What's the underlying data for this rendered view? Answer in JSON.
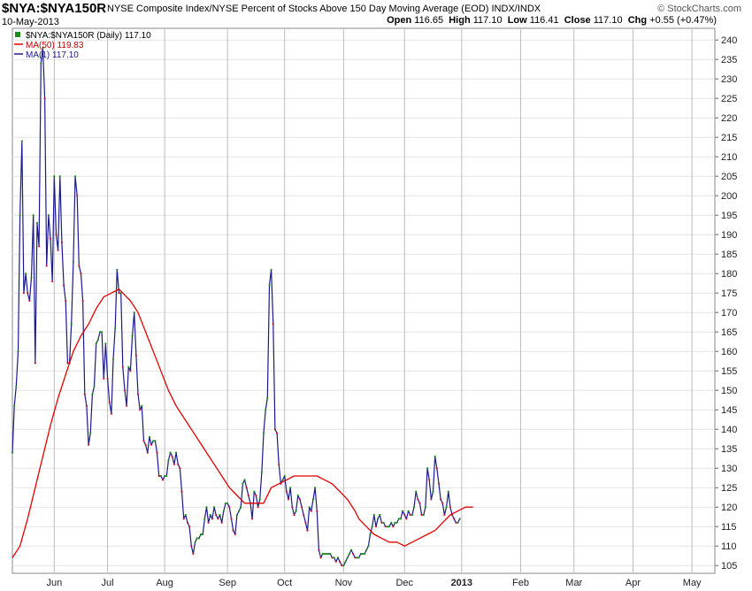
{
  "header": {
    "symbol": "$NYA:$NYA150R",
    "name": "NYSE Composite Index/NYSE Percent of Stocks Above 150 Day Moving Average (EOD)  INDX/INDX",
    "brand": "© StockCharts.com",
    "date": "10-May-2013",
    "open_label": "Open",
    "open": "116.65",
    "high_label": "High",
    "high": "117.10",
    "low_label": "Low",
    "low": "116.41",
    "close_label": "Close",
    "close": "117.10",
    "chg_label": "Chg",
    "chg": "+0.55 (+0.47%)"
  },
  "chart_data": {
    "type": "line",
    "legend": [
      {
        "label": "$NYA:$NYA150R (Daily) 117.10",
        "color": "#1a1a8c"
      },
      {
        "label": "MA(50) 119.83",
        "color": "#e00000"
      },
      {
        "label": "MA(1) 117.10",
        "color": "#1a1a8c"
      }
    ],
    "legend_position": "top-left",
    "ylim": [
      103,
      243
    ],
    "y_ticks": [
      105,
      110,
      115,
      120,
      125,
      130,
      135,
      140,
      145,
      150,
      155,
      160,
      165,
      170,
      175,
      180,
      185,
      190,
      195,
      200,
      205,
      210,
      215,
      220,
      225,
      230,
      235,
      240
    ],
    "x_ticks": [
      {
        "label": "Jun",
        "x": 10
      },
      {
        "label": "Jul",
        "x": 38
      },
      {
        "label": "Aug",
        "x": 68
      },
      {
        "label": "Sep",
        "x": 101
      },
      {
        "label": "Oct",
        "x": 131
      },
      {
        "label": "Nov",
        "x": 162
      },
      {
        "label": "Dec",
        "x": 194
      },
      {
        "label": "2013",
        "x": 224
      },
      {
        "label": "Feb",
        "x": 255
      },
      {
        "label": "Mar",
        "x": 283
      },
      {
        "label": "Apr",
        "x": 314
      },
      {
        "label": "May",
        "x": 345
      }
    ],
    "x_range": [
      -12,
      357
    ],
    "grid": true,
    "series": [
      {
        "name": "$NYA:$NYA150R",
        "color": "#1a1a8c",
        "points": [
          [
            -12,
            134
          ],
          [
            -11,
            146
          ],
          [
            -10,
            151
          ],
          [
            -9,
            160
          ],
          [
            -8,
            195
          ],
          [
            -7,
            214
          ],
          [
            -6,
            175
          ],
          [
            -5,
            180
          ],
          [
            -4,
            175
          ],
          [
            -3,
            173
          ],
          [
            -2,
            179
          ],
          [
            -1,
            195
          ],
          [
            0,
            157
          ],
          [
            1,
            193
          ],
          [
            2,
            187
          ],
          [
            3,
            234
          ],
          [
            4,
            238
          ],
          [
            5,
            225
          ],
          [
            6,
            182
          ],
          [
            7,
            195
          ],
          [
            8,
            189
          ],
          [
            9,
            178
          ],
          [
            10,
            205
          ],
          [
            11,
            190
          ],
          [
            12,
            186
          ],
          [
            13,
            205
          ],
          [
            14,
            188
          ],
          [
            15,
            177
          ],
          [
            16,
            173
          ],
          [
            17,
            157
          ],
          [
            18,
            157
          ],
          [
            19,
            167
          ],
          [
            20,
            183
          ],
          [
            21,
            205
          ],
          [
            22,
            200
          ],
          [
            23,
            182
          ],
          [
            24,
            180
          ],
          [
            25,
            173
          ],
          [
            26,
            149
          ],
          [
            27,
            146
          ],
          [
            28,
            136
          ],
          [
            29,
            139
          ],
          [
            30,
            149
          ],
          [
            31,
            151
          ],
          [
            32,
            162
          ],
          [
            33,
            163
          ],
          [
            34,
            165
          ],
          [
            35,
            165
          ],
          [
            36,
            153
          ],
          [
            37,
            162
          ],
          [
            38,
            153
          ],
          [
            39,
            147
          ],
          [
            40,
            144
          ],
          [
            41,
            158
          ],
          [
            42,
            166
          ],
          [
            43,
            181
          ],
          [
            44,
            175
          ],
          [
            45,
            175
          ],
          [
            46,
            156
          ],
          [
            47,
            150
          ],
          [
            48,
            146
          ],
          [
            49,
            156
          ],
          [
            50,
            155
          ],
          [
            51,
            164
          ],
          [
            52,
            170
          ],
          [
            53,
            159
          ],
          [
            54,
            149
          ],
          [
            55,
            145
          ],
          [
            56,
            146
          ],
          [
            57,
            137
          ],
          [
            58,
            136
          ],
          [
            59,
            134
          ],
          [
            60,
            138
          ],
          [
            61,
            136
          ],
          [
            62,
            137
          ],
          [
            63,
            137
          ],
          [
            64,
            134
          ],
          [
            65,
            128
          ],
          [
            66,
            128
          ],
          [
            67,
            127
          ],
          [
            68,
            128
          ],
          [
            69,
            128
          ],
          [
            70,
            132
          ],
          [
            71,
            134
          ],
          [
            72,
            133
          ],
          [
            73,
            131
          ],
          [
            74,
            134
          ],
          [
            75,
            131
          ],
          [
            76,
            130
          ],
          [
            77,
            124
          ],
          [
            78,
            117
          ],
          [
            79,
            118
          ],
          [
            80,
            116
          ],
          [
            81,
            115
          ],
          [
            82,
            110
          ],
          [
            83,
            108
          ],
          [
            84,
            111
          ],
          [
            85,
            112
          ],
          [
            86,
            112
          ],
          [
            87,
            113
          ],
          [
            88,
            113
          ],
          [
            89,
            117
          ],
          [
            90,
            120
          ],
          [
            91,
            116
          ],
          [
            92,
            118
          ],
          [
            93,
            117
          ],
          [
            94,
            120
          ],
          [
            95,
            118
          ],
          [
            96,
            117
          ],
          [
            97,
            118
          ],
          [
            98,
            116
          ],
          [
            99,
            119
          ],
          [
            100,
            121
          ],
          [
            101,
            121
          ],
          [
            102,
            120
          ],
          [
            103,
            117
          ],
          [
            104,
            114
          ],
          [
            105,
            113
          ],
          [
            106,
            118
          ],
          [
            107,
            119
          ],
          [
            108,
            120
          ],
          [
            109,
            126
          ],
          [
            110,
            127
          ],
          [
            111,
            125
          ],
          [
            112,
            123
          ],
          [
            113,
            121
          ],
          [
            114,
            117
          ],
          [
            115,
            124
          ],
          [
            116,
            123
          ],
          [
            117,
            120
          ],
          [
            118,
            122
          ],
          [
            119,
            129
          ],
          [
            120,
            139
          ],
          [
            121,
            145
          ],
          [
            122,
            148
          ],
          [
            123,
            177
          ],
          [
            124,
            181
          ],
          [
            125,
            167
          ],
          [
            126,
            140
          ],
          [
            127,
            139
          ],
          [
            128,
            131
          ],
          [
            129,
            126
          ],
          [
            130,
            127
          ],
          [
            131,
            128
          ],
          [
            132,
            124
          ],
          [
            133,
            122
          ],
          [
            134,
            125
          ],
          [
            135,
            120
          ],
          [
            136,
            118
          ],
          [
            137,
            119
          ],
          [
            138,
            123
          ],
          [
            139,
            122
          ],
          [
            140,
            120
          ],
          [
            141,
            118
          ],
          [
            142,
            116
          ],
          [
            143,
            114
          ],
          [
            144,
            120
          ],
          [
            145,
            119
          ],
          [
            146,
            122
          ],
          [
            147,
            125
          ],
          [
            148,
            119
          ],
          [
            149,
            109
          ],
          [
            150,
            107
          ],
          [
            151,
            108
          ],
          [
            152,
            108
          ],
          [
            153,
            108
          ],
          [
            154,
            108
          ],
          [
            155,
            108
          ],
          [
            156,
            107
          ],
          [
            157,
            107
          ],
          [
            158,
            106
          ],
          [
            159,
            107
          ],
          [
            160,
            106
          ],
          [
            161,
            105
          ],
          [
            162,
            105
          ],
          [
            163,
            106
          ],
          [
            164,
            107
          ],
          [
            165,
            108
          ],
          [
            166,
            109
          ],
          [
            167,
            108
          ],
          [
            168,
            107
          ],
          [
            169,
            107
          ],
          [
            170,
            107
          ],
          [
            171,
            108
          ],
          [
            172,
            108
          ],
          [
            173,
            108
          ],
          [
            174,
            109
          ],
          [
            175,
            110
          ],
          [
            176,
            113
          ],
          [
            177,
            115
          ],
          [
            178,
            118
          ],
          [
            179,
            115
          ],
          [
            180,
            117
          ],
          [
            181,
            118
          ],
          [
            182,
            116
          ],
          [
            183,
            116
          ],
          [
            184,
            115
          ],
          [
            185,
            115
          ],
          [
            186,
            115
          ],
          [
            187,
            116
          ],
          [
            188,
            115
          ],
          [
            189,
            116
          ],
          [
            190,
            116
          ],
          [
            191,
            117
          ],
          [
            192,
            117
          ],
          [
            193,
            119
          ],
          [
            194,
            118
          ],
          [
            195,
            117
          ],
          [
            196,
            119
          ],
          [
            197,
            118
          ],
          [
            198,
            118
          ],
          [
            199,
            120
          ],
          [
            200,
            124
          ],
          [
            201,
            122
          ],
          [
            202,
            121
          ],
          [
            203,
            118
          ],
          [
            204,
            118
          ],
          [
            205,
            120
          ],
          [
            206,
            130
          ],
          [
            207,
            127
          ],
          [
            208,
            122
          ],
          [
            209,
            124
          ],
          [
            210,
            133
          ],
          [
            211,
            130
          ],
          [
            212,
            126
          ],
          [
            213,
            122
          ],
          [
            214,
            121
          ],
          [
            215,
            118
          ],
          [
            216,
            120
          ],
          [
            217,
            124
          ],
          [
            218,
            120
          ],
          [
            219,
            118
          ],
          [
            220,
            117
          ],
          [
            221,
            116
          ],
          [
            222,
            116
          ],
          [
            223,
            117
          ]
        ]
      },
      {
        "name": "MA(50)",
        "color": "#e00000",
        "points": [
          [
            -12,
            107
          ],
          [
            -8,
            110
          ],
          [
            -4,
            117
          ],
          [
            0,
            125
          ],
          [
            4,
            133
          ],
          [
            8,
            141
          ],
          [
            12,
            148
          ],
          [
            16,
            154
          ],
          [
            20,
            160
          ],
          [
            24,
            164
          ],
          [
            28,
            167
          ],
          [
            32,
            171
          ],
          [
            36,
            174
          ],
          [
            40,
            175
          ],
          [
            44,
            176
          ],
          [
            46,
            175
          ],
          [
            50,
            173
          ],
          [
            54,
            170
          ],
          [
            58,
            165
          ],
          [
            62,
            160
          ],
          [
            66,
            155
          ],
          [
            70,
            150
          ],
          [
            74,
            146
          ],
          [
            78,
            143
          ],
          [
            82,
            140
          ],
          [
            86,
            137
          ],
          [
            90,
            134
          ],
          [
            94,
            131
          ],
          [
            98,
            128
          ],
          [
            102,
            125
          ],
          [
            106,
            123
          ],
          [
            110,
            121
          ],
          [
            114,
            121
          ],
          [
            118,
            121
          ],
          [
            120,
            121
          ],
          [
            124,
            125
          ],
          [
            128,
            126
          ],
          [
            132,
            127
          ],
          [
            136,
            128
          ],
          [
            140,
            128
          ],
          [
            144,
            128
          ],
          [
            148,
            128
          ],
          [
            152,
            127
          ],
          [
            156,
            126
          ],
          [
            160,
            124
          ],
          [
            164,
            122
          ],
          [
            168,
            119
          ],
          [
            170,
            117
          ],
          [
            174,
            115
          ],
          [
            178,
            113
          ],
          [
            182,
            112
          ],
          [
            186,
            111
          ],
          [
            190,
            111
          ],
          [
            194,
            110
          ],
          [
            198,
            111
          ],
          [
            202,
            112
          ],
          [
            206,
            113
          ],
          [
            210,
            114
          ],
          [
            214,
            116
          ],
          [
            218,
            118
          ],
          [
            222,
            119
          ],
          [
            226,
            120
          ],
          [
            230,
            120
          ]
        ]
      }
    ]
  }
}
